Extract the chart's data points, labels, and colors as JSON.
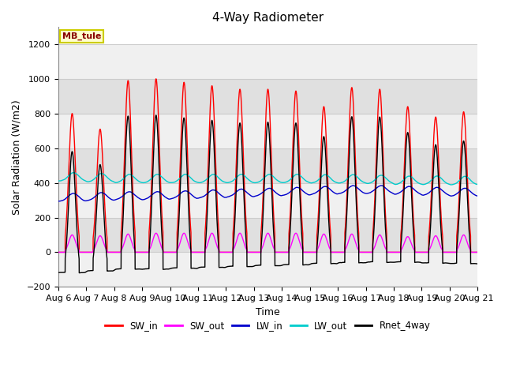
{
  "title": "4-Way Radiometer",
  "xlabel": "Time",
  "ylabel": "Solar Radiation (W/m2)",
  "ylim": [
    -200,
    1300
  ],
  "yticks": [
    -200,
    0,
    200,
    400,
    600,
    800,
    1000,
    1200
  ],
  "xlim": [
    0,
    15
  ],
  "xtick_labels": [
    "Aug 6",
    "Aug 7",
    "Aug 8",
    "Aug 9",
    "Aug 10",
    "Aug 11",
    "Aug 12",
    "Aug 13",
    "Aug 14",
    "Aug 15",
    "Aug 16",
    "Aug 17",
    "Aug 18",
    "Aug 19",
    "Aug 20",
    "Aug 21"
  ],
  "annotation_text": "MB_tule",
  "annotation_box_color": "#ffffcc",
  "annotation_box_edge": "#cccc00",
  "background_color": "#ffffff",
  "plot_bg_color": "#ffffff",
  "band_colors": [
    "#f0f0f0",
    "#e0e0e0"
  ],
  "grid_color": "#cccccc",
  "colors": {
    "SW_in": "#ff0000",
    "SW_out": "#ff00ff",
    "LW_in": "#0000cc",
    "LW_out": "#00cccc",
    "Rnet_4way": "#000000"
  },
  "legend_labels": [
    "SW_in",
    "SW_out",
    "LW_in",
    "LW_out",
    "Rnet_4way"
  ],
  "SW_in_peaks": [
    800,
    710,
    990,
    1000,
    980,
    960,
    940,
    940,
    930,
    840,
    950,
    940,
    840,
    780,
    810
  ],
  "SW_out_peaks": [
    100,
    95,
    105,
    110,
    110,
    110,
    110,
    110,
    110,
    105,
    105,
    100,
    90,
    95,
    100
  ],
  "LW_in_base": [
    300,
    305,
    310,
    310,
    315,
    320,
    325,
    330,
    335,
    340,
    345,
    345,
    340,
    335,
    330
  ],
  "LW_out_base": [
    410,
    405,
    400,
    400,
    400,
    400,
    400,
    400,
    400,
    398,
    398,
    395,
    390,
    390,
    388
  ],
  "Rnet_night": -100
}
